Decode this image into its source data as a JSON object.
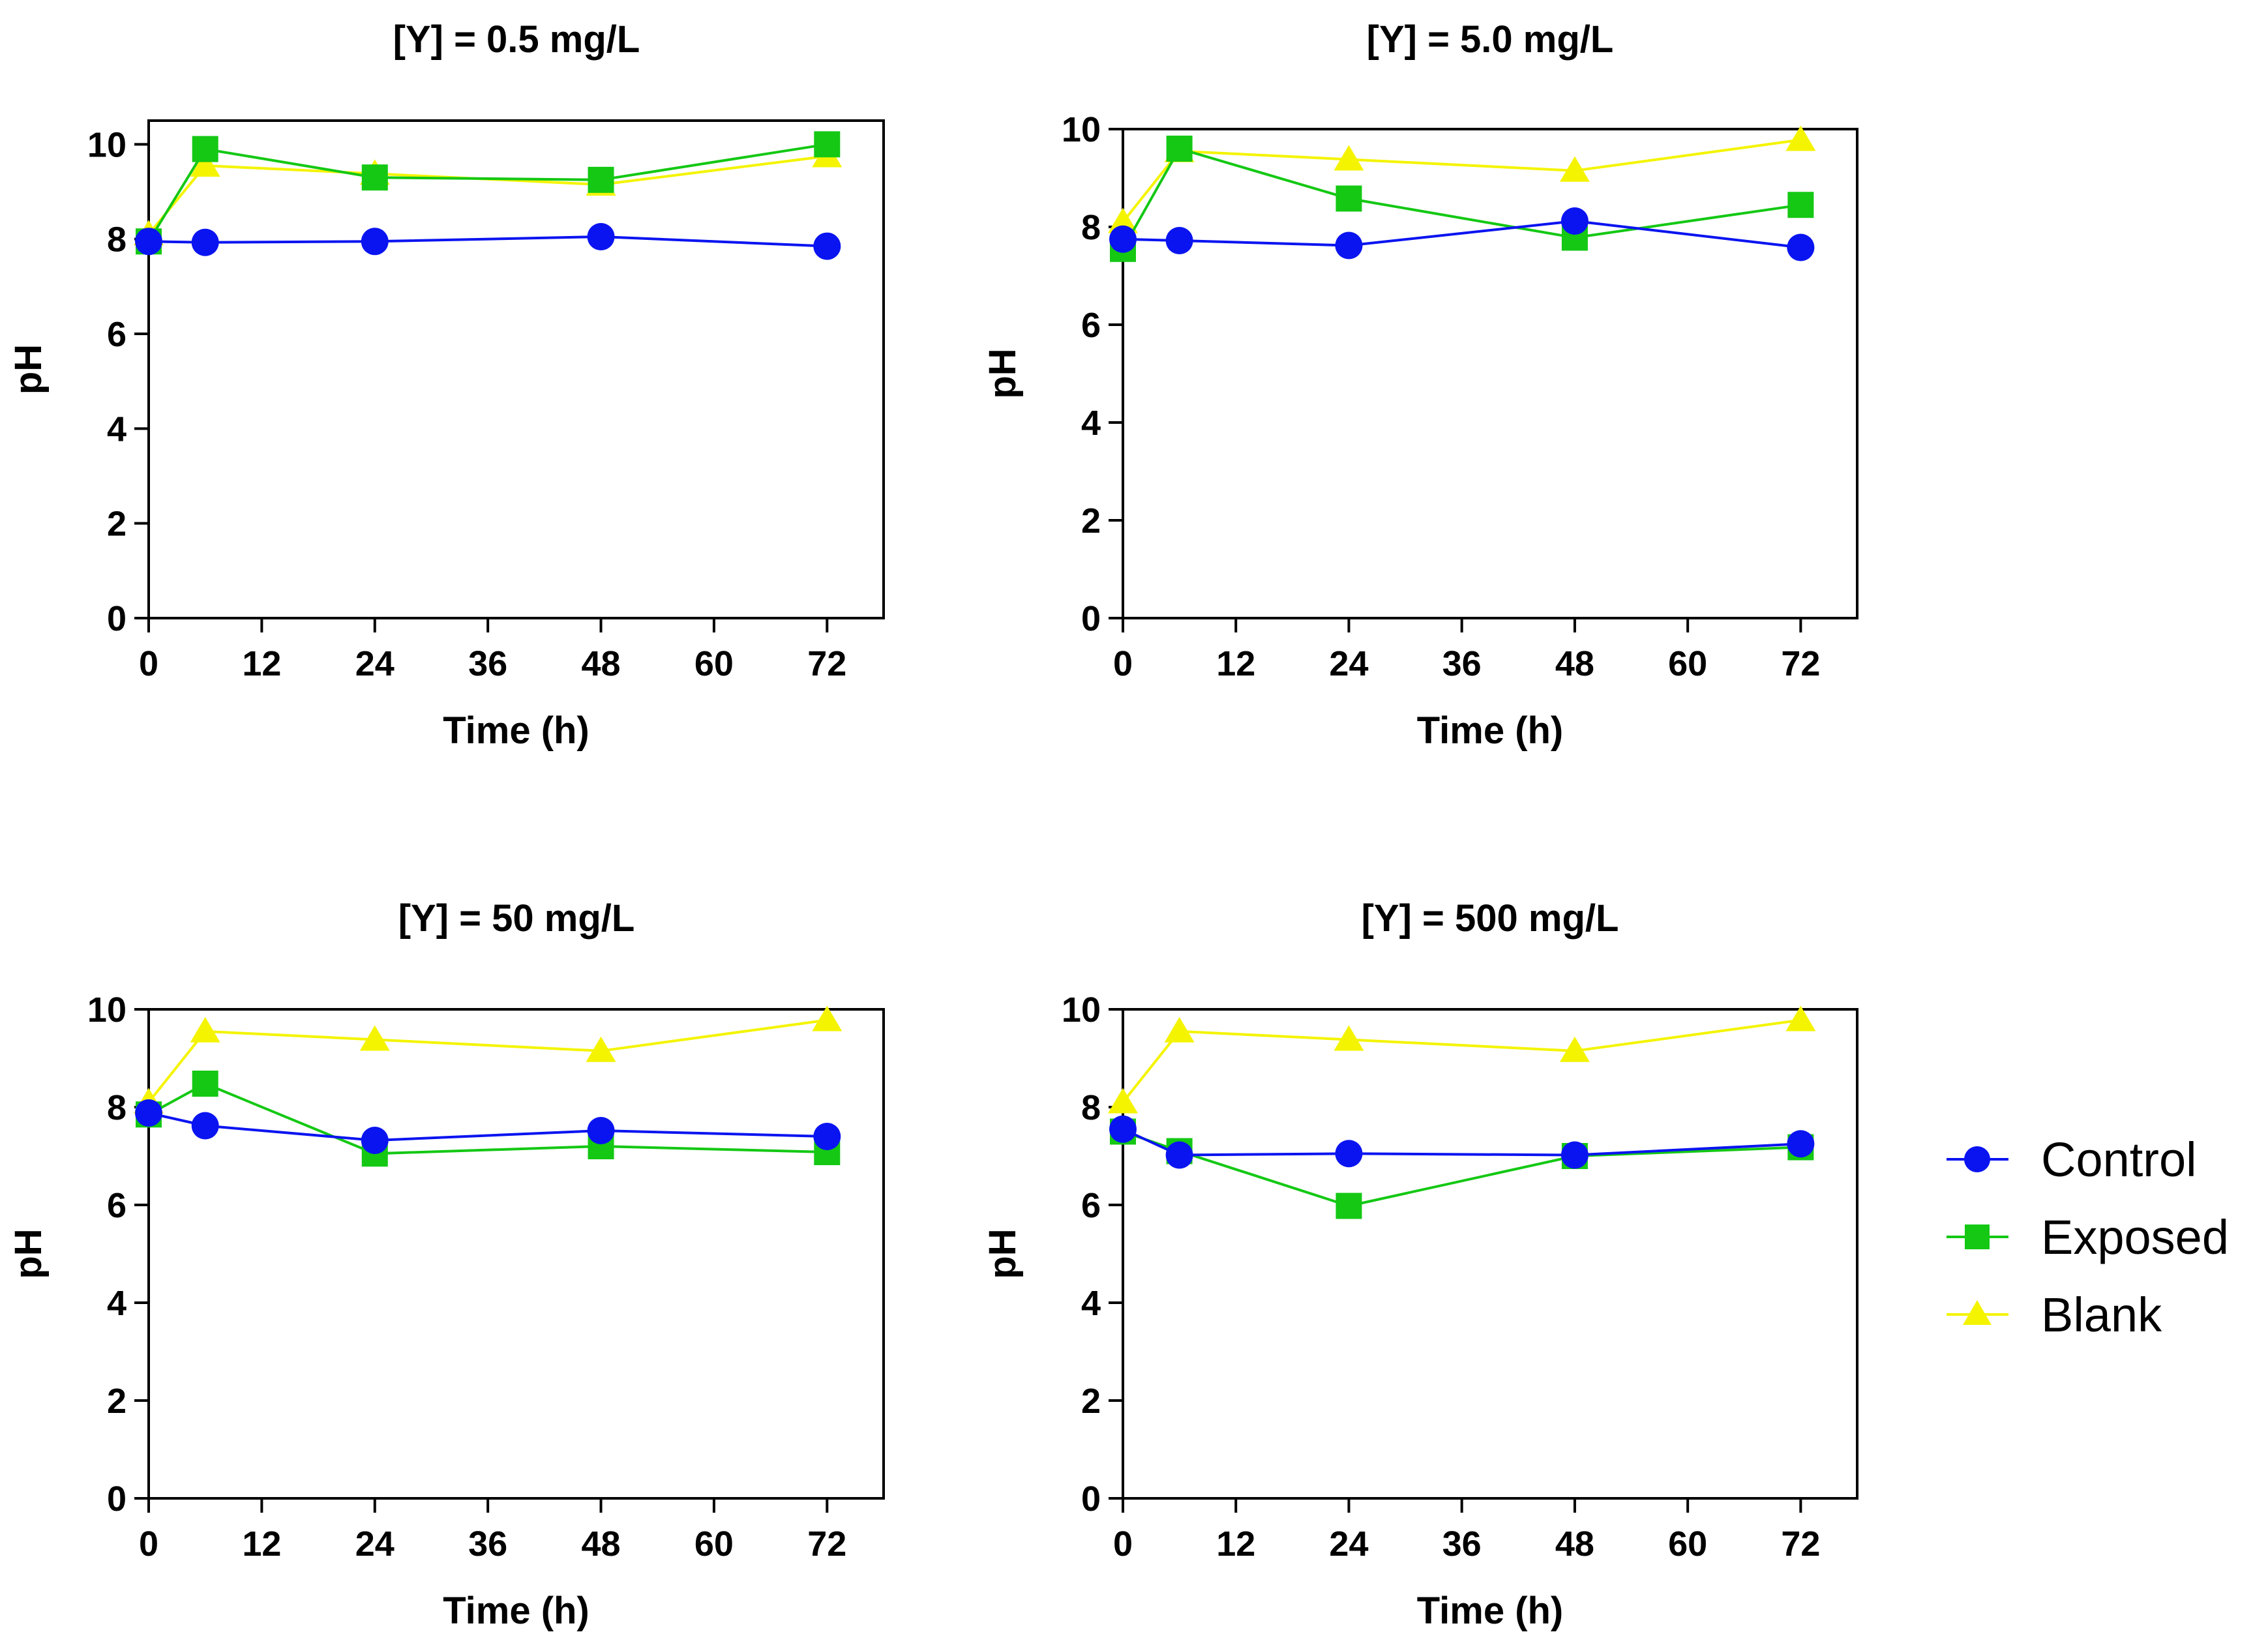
{
  "series_info": [
    {
      "name": "Control",
      "color": "#0a14f0",
      "marker": "circle"
    },
    {
      "name": "Exposed",
      "color": "#14c814",
      "marker": "square"
    },
    {
      "name": "Blank",
      "color": "#f4f400",
      "marker": "triangle"
    }
  ],
  "chart_data": [
    {
      "type": "line",
      "title": "[Y] = 0.5 mg/L",
      "xlabel": "Time (h)",
      "ylabel": "pH",
      "x": [
        0,
        6,
        24,
        48,
        72
      ],
      "xlim": [
        0,
        78
      ],
      "ylim": [
        0,
        10.5
      ],
      "xticks": [
        0,
        12,
        24,
        36,
        48,
        60,
        72
      ],
      "yticks": [
        0,
        2,
        4,
        6,
        8,
        10
      ],
      "series": [
        {
          "name": "Control",
          "values": [
            7.95,
            7.93,
            7.95,
            8.05,
            7.85
          ]
        },
        {
          "name": "Exposed",
          "values": [
            7.95,
            9.9,
            9.3,
            9.25,
            10.0
          ]
        },
        {
          "name": "Blank",
          "values": [
            8.1,
            9.55,
            9.38,
            9.15,
            9.75
          ]
        }
      ]
    },
    {
      "type": "line",
      "title": "[Y] = 5.0 mg/L",
      "xlabel": "Time (h)",
      "ylabel": "pH",
      "x": [
        0,
        6,
        24,
        48,
        72
      ],
      "xlim": [
        0,
        78
      ],
      "ylim": [
        0,
        10
      ],
      "xticks": [
        0,
        12,
        24,
        36,
        48,
        60,
        72
      ],
      "yticks": [
        0,
        2,
        4,
        6,
        8,
        10
      ],
      "series": [
        {
          "name": "Control",
          "values": [
            7.75,
            7.72,
            7.62,
            8.12,
            7.58
          ]
        },
        {
          "name": "Exposed",
          "values": [
            7.55,
            9.6,
            8.58,
            7.78,
            8.45
          ]
        },
        {
          "name": "Blank",
          "values": [
            8.1,
            9.55,
            9.38,
            9.15,
            9.78
          ]
        }
      ]
    },
    {
      "type": "line",
      "title": "[Y] = 50 mg/L",
      "xlabel": "Time (h)",
      "ylabel": "pH",
      "x": [
        0,
        6,
        24,
        48,
        72
      ],
      "xlim": [
        0,
        78
      ],
      "ylim": [
        0,
        10
      ],
      "xticks": [
        0,
        12,
        24,
        36,
        48,
        60,
        72
      ],
      "yticks": [
        0,
        2,
        4,
        6,
        8,
        10
      ],
      "series": [
        {
          "name": "Control",
          "values": [
            7.88,
            7.62,
            7.32,
            7.52,
            7.4
          ]
        },
        {
          "name": "Exposed",
          "values": [
            7.85,
            8.48,
            7.05,
            7.2,
            7.08
          ]
        },
        {
          "name": "Blank",
          "values": [
            8.1,
            9.55,
            9.38,
            9.15,
            9.78
          ]
        }
      ]
    },
    {
      "type": "line",
      "title": "[Y] = 500 mg/L",
      "xlabel": "Time (h)",
      "ylabel": "pH",
      "x": [
        0,
        6,
        24,
        48,
        72
      ],
      "xlim": [
        0,
        78
      ],
      "ylim": [
        0,
        10
      ],
      "xticks": [
        0,
        12,
        24,
        36,
        48,
        60,
        72
      ],
      "yticks": [
        0,
        2,
        4,
        6,
        8,
        10
      ],
      "series": [
        {
          "name": "Control",
          "values": [
            7.55,
            7.02,
            7.05,
            7.02,
            7.25
          ]
        },
        {
          "name": "Exposed",
          "values": [
            7.5,
            7.1,
            5.98,
            7.0,
            7.18
          ]
        },
        {
          "name": "Blank",
          "values": [
            8.1,
            9.55,
            9.38,
            9.15,
            9.78
          ]
        }
      ]
    }
  ]
}
